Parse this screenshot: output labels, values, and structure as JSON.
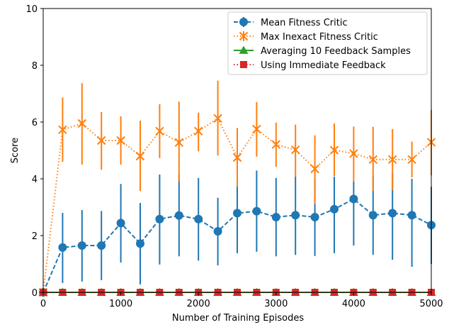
{
  "chart_data": {
    "type": "line",
    "xlabel": "Number of Training Episodes",
    "ylabel": "Score",
    "xlim": [
      0,
      5000
    ],
    "ylim": [
      0,
      10
    ],
    "xticks": [
      0,
      1000,
      2000,
      3000,
      4000,
      5000
    ],
    "yticks": [
      0,
      2,
      4,
      6,
      8,
      10
    ],
    "xtick_labels": [
      "0",
      "1000",
      "2000",
      "3000",
      "4000",
      "5000"
    ],
    "ytick_labels": [
      "0",
      "2",
      "4",
      "6",
      "8",
      "10"
    ],
    "grid": false,
    "legend_position": "top-right",
    "series": [
      {
        "name": "Mean Fitness Critic",
        "color": "#1f77b4",
        "marker": "circle",
        "line_style": "dashed",
        "x": [
          0,
          250,
          500,
          750,
          1000,
          1250,
          1500,
          1750,
          2000,
          2250,
          2500,
          2750,
          3000,
          3250,
          3500,
          3750,
          4000,
          4250,
          4500,
          4750,
          5000
        ],
        "y": [
          0.0,
          1.58,
          1.65,
          1.65,
          2.44,
          1.72,
          2.58,
          2.71,
          2.58,
          2.15,
          2.79,
          2.86,
          2.65,
          2.72,
          2.65,
          2.93,
          3.29,
          2.72,
          2.79,
          2.72,
          2.37
        ],
        "err_low": [
          0.0,
          0.33,
          0.38,
          0.43,
          1.05,
          0.28,
          0.98,
          1.27,
          1.12,
          0.95,
          1.38,
          1.43,
          1.27,
          1.32,
          1.28,
          1.38,
          1.65,
          1.32,
          1.15,
          0.9,
          1.0
        ],
        "err_high": [
          0.0,
          2.8,
          2.9,
          2.87,
          3.82,
          3.15,
          4.15,
          4.15,
          4.03,
          3.33,
          4.04,
          4.29,
          4.03,
          4.08,
          4.03,
          4.08,
          3.9,
          4.09,
          4.19,
          4.0,
          3.72
        ]
      },
      {
        "name": "Max Inexact Fitness Critic",
        "color": "#ff7f0e",
        "marker": "x",
        "line_style": "dotted",
        "x": [
          0,
          250,
          500,
          750,
          1000,
          1250,
          1500,
          1750,
          2000,
          2250,
          2500,
          2750,
          3000,
          3250,
          3500,
          3750,
          4000,
          4250,
          4500,
          4750,
          5000
        ],
        "y": [
          0.0,
          5.73,
          5.95,
          5.35,
          5.35,
          4.8,
          5.68,
          5.28,
          5.68,
          6.13,
          4.75,
          5.75,
          5.21,
          5.02,
          4.35,
          5.01,
          4.89,
          4.68,
          4.68,
          4.68,
          5.29
        ],
        "err_low": [
          0.0,
          4.6,
          4.5,
          4.32,
          4.5,
          3.57,
          4.73,
          3.9,
          4.97,
          4.82,
          3.72,
          4.78,
          4.42,
          4.08,
          3.1,
          4.1,
          3.9,
          3.57,
          3.6,
          4.05,
          4.12
        ],
        "err_high": [
          0.0,
          6.87,
          7.37,
          6.35,
          6.2,
          6.05,
          6.63,
          6.72,
          6.33,
          7.46,
          5.79,
          6.7,
          5.98,
          5.91,
          5.53,
          5.95,
          5.84,
          5.83,
          5.75,
          5.31,
          6.43
        ]
      },
      {
        "name": "Averaging 10 Feedback Samples",
        "color": "#2ca02c",
        "marker": "triangle",
        "line_style": "solid",
        "x": [
          0,
          250,
          500,
          750,
          1000,
          1250,
          1500,
          1750,
          2000,
          2250,
          2500,
          2750,
          3000,
          3250,
          3500,
          3750,
          4000,
          4250,
          4500,
          4750,
          5000
        ],
        "y": [
          0,
          0,
          0,
          0,
          0,
          0,
          0,
          0,
          0,
          0,
          0,
          0,
          0,
          0,
          0,
          0,
          0,
          0,
          0,
          0,
          0
        ]
      },
      {
        "name": "Using Immediate Feedback",
        "color": "#d62728",
        "marker": "square",
        "line_style": "dotted",
        "x": [
          0,
          250,
          500,
          750,
          1000,
          1250,
          1500,
          1750,
          2000,
          2250,
          2500,
          2750,
          3000,
          3250,
          3500,
          3750,
          4000,
          4250,
          4500,
          4750,
          5000
        ],
        "y": [
          0,
          0,
          0,
          0,
          0,
          0,
          0,
          0,
          0,
          0,
          0,
          0,
          0,
          0,
          0,
          0,
          0,
          0,
          0,
          0,
          0
        ]
      }
    ]
  }
}
